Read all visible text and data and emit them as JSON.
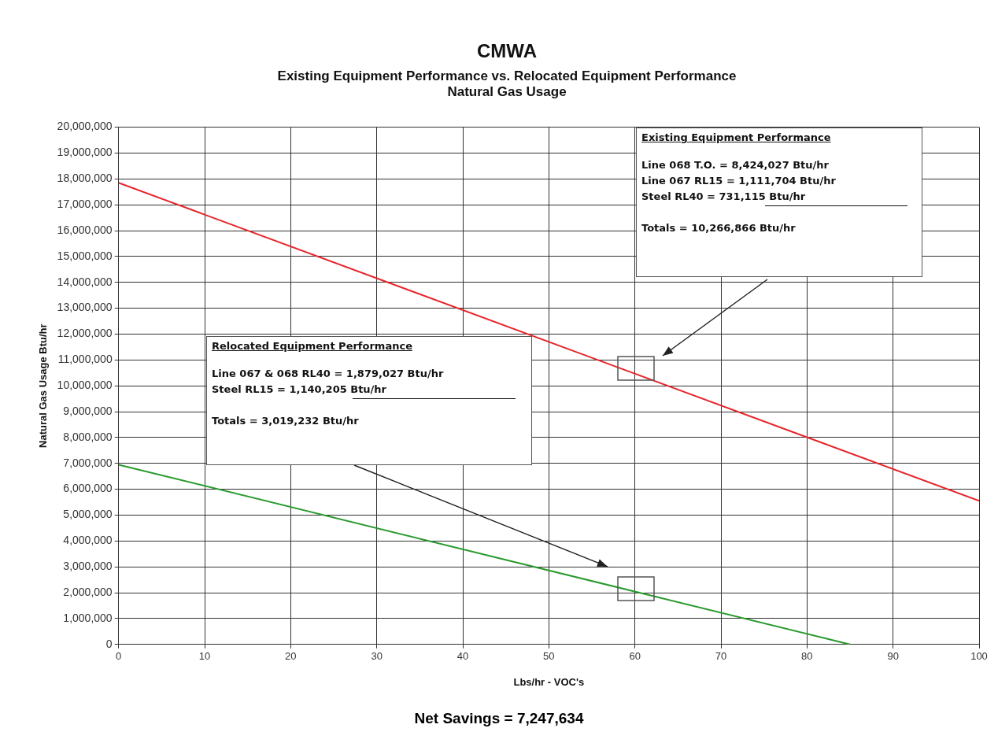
{
  "chart_data": {
    "type": "line",
    "title": "CMWA",
    "subtitle": "Existing Equipment Performance vs. Relocated Equipment Performance\nNatural Gas Usage",
    "xlabel": "Lbs/hr - VOC's",
    "ylabel": "Natural Gas Usage Btu/hr",
    "series": [
      {
        "color": "#e8262b",
        "x": [
          0,
          100
        ],
        "values": [
          17850000,
          5550000
        ]
      },
      {
        "color": "#2a9a2f",
        "x": [
          0,
          85
        ],
        "values": [
          6950000,
          0
        ]
      }
    ],
    "xlim": [
      0,
      100
    ],
    "xticks": [
      0,
      10,
      20,
      30,
      40,
      50,
      60,
      70,
      80,
      90,
      100
    ],
    "ylim": [
      0,
      20000000
    ],
    "yticks": [
      0,
      {
        "value": 1000000,
        "label": "1,000,000"
      },
      {
        "value": 2000000,
        "label": "2,000,000"
      },
      {
        "value": 3000000,
        "label": "3,000,000"
      },
      {
        "value": 4000000,
        "label": "4,000,000"
      },
      {
        "value": 5000000,
        "label": "5,000,000"
      },
      {
        "value": 6000000,
        "label": "6,000,000"
      },
      {
        "value": 7000000,
        "label": "7,000,000"
      },
      {
        "value": 8000000,
        "label": "8,000,000"
      },
      {
        "value": 9000000,
        "label": "9,000,000"
      },
      {
        "value": 10000000,
        "label": "10,000,000"
      },
      {
        "value": 11000000,
        "label": "11,000,000"
      },
      {
        "value": 12000000,
        "label": "12,000,000"
      },
      {
        "value": 13000000,
        "label": "13,000,000"
      },
      {
        "value": 14000000,
        "label": "14,000,000"
      },
      {
        "value": 15000000,
        "label": "15,000,000"
      },
      {
        "value": 16000000,
        "label": "16,000,000"
      },
      {
        "value": 17000000,
        "label": "17,000,000"
      },
      {
        "value": 18000000,
        "label": "18,000,000"
      },
      {
        "value": 19000000,
        "label": "19,000,000"
      },
      {
        "value": 20000000,
        "label": "20,000,000"
      }
    ],
    "grid": true,
    "legend": false,
    "marker": "none",
    "line_style": "solid",
    "annotations": [
      "Net Savings = 7,247,634",
      "Existing Equipment Performance",
      "Line 068 T.O. = 8,424,027 Btu/hr",
      "Line 067 RL15 = 1,111,704 Btu/hr",
      "Steel RL40 = 731,115 Btu/hr",
      "Totals = 10,266,866 Btu/hr",
      "Relocated Equipment Performance",
      "Line 067 & 068 RL40 = 1,879,027 Btu/hr",
      "Steel RL15 = 1,140,205 Btu/hr",
      "Totals = 3,019,232 Btu/hr"
    ]
  }
}
